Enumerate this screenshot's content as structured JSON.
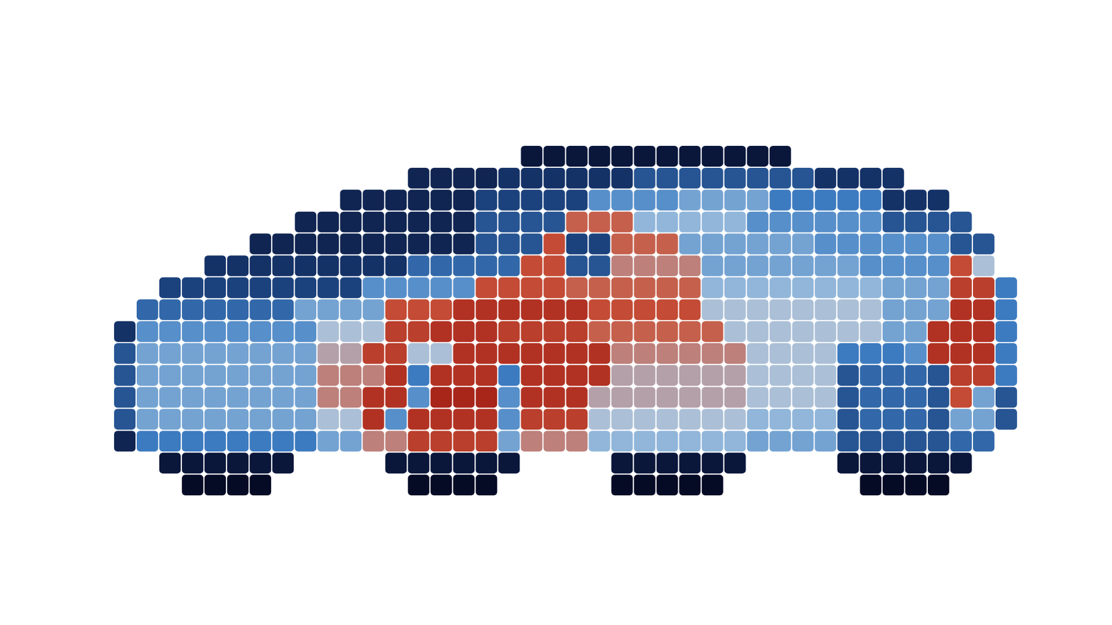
{
  "chart_data": {
    "type": "heatmap",
    "tick_labels": false,
    "xlim": [
      0,
      40
    ],
    "ylim": [
      0,
      16
    ],
    "cells": [
      [
        null,
        null,
        null,
        null,
        null,
        null,
        null,
        null,
        null,
        null,
        null,
        null,
        null,
        null,
        null,
        null,
        null,
        null,
        0.1,
        0.1,
        0.1,
        0.1,
        0.1,
        0.1,
        0.1,
        0.1,
        0.1,
        0.1,
        0.1,
        0.1,
        null,
        null,
        null,
        null,
        null,
        null,
        null,
        null,
        null,
        null
      ],
      [
        null,
        null,
        null,
        null,
        null,
        null,
        null,
        null,
        null,
        null,
        null,
        null,
        null,
        0.15,
        0.15,
        0.15,
        0.15,
        0.2,
        0.2,
        0.2,
        0.2,
        0.2,
        0.2,
        0.3,
        0.3,
        0.3,
        0.3,
        0.3,
        0.3,
        0.3,
        0.3,
        0.2,
        0.2,
        0.2,
        0.2,
        null,
        null,
        null,
        null,
        null
      ],
      [
        null,
        null,
        null,
        null,
        null,
        null,
        null,
        null,
        null,
        null,
        0.15,
        0.15,
        0.15,
        0.15,
        0.15,
        0.15,
        0.25,
        0.25,
        0.25,
        0.25,
        0.25,
        0.45,
        0.45,
        0.45,
        0.45,
        0.5,
        0.5,
        0.5,
        0.5,
        0.4,
        0.4,
        0.4,
        0.4,
        0.4,
        0.2,
        0.2,
        0.2,
        null,
        null,
        null
      ],
      [
        null,
        null,
        null,
        null,
        null,
        null,
        null,
        null,
        0.15,
        0.15,
        0.15,
        0.15,
        0.15,
        0.15,
        0.15,
        0.15,
        0.3,
        0.3,
        0.3,
        0.3,
        0.75,
        0.75,
        0.75,
        0.55,
        0.55,
        0.55,
        0.55,
        0.55,
        0.45,
        0.45,
        0.45,
        0.45,
        0.45,
        0.45,
        0.3,
        0.3,
        0.3,
        0.3,
        null,
        null
      ],
      [
        null,
        null,
        null,
        null,
        null,
        null,
        0.15,
        0.15,
        0.15,
        0.15,
        0.15,
        0.15,
        0.15,
        0.15,
        0.15,
        0.15,
        0.3,
        0.3,
        0.3,
        0.8,
        0.25,
        0.25,
        0.75,
        0.75,
        0.75,
        0.5,
        0.5,
        0.5,
        0.5,
        0.5,
        0.5,
        0.45,
        0.45,
        0.45,
        0.45,
        0.45,
        0.45,
        0.3,
        0.3,
        null
      ],
      [
        null,
        null,
        null,
        null,
        0.2,
        0.2,
        0.2,
        0.2,
        0.2,
        0.2,
        0.2,
        0.2,
        0.2,
        0.35,
        0.35,
        0.35,
        0.35,
        0.35,
        0.8,
        0.8,
        0.3,
        0.3,
        0.7,
        0.7,
        0.7,
        0.7,
        0.5,
        0.5,
        0.5,
        0.5,
        0.5,
        0.5,
        0.5,
        0.45,
        0.45,
        0.45,
        0.45,
        0.8,
        0.6,
        null
      ],
      [
        null,
        null,
        0.25,
        0.25,
        0.25,
        0.25,
        0.25,
        0.25,
        0.25,
        0.25,
        0.25,
        0.45,
        0.45,
        0.45,
        0.45,
        0.45,
        0.8,
        0.8,
        0.8,
        0.8,
        0.75,
        0.75,
        0.75,
        0.75,
        0.75,
        0.75,
        0.55,
        0.55,
        0.55,
        0.55,
        0.55,
        0.55,
        0.55,
        0.55,
        0.5,
        0.5,
        0.5,
        0.85,
        0.85,
        0.4
      ],
      [
        null,
        0.35,
        0.35,
        0.35,
        0.35,
        0.35,
        0.35,
        0.35,
        0.5,
        0.5,
        0.5,
        0.5,
        0.8,
        0.8,
        0.8,
        0.9,
        0.9,
        0.9,
        0.9,
        0.9,
        0.9,
        0.8,
        0.8,
        0.8,
        0.8,
        0.8,
        0.6,
        0.6,
        0.6,
        0.6,
        0.6,
        0.6,
        0.6,
        0.6,
        0.5,
        0.5,
        0.5,
        0.9,
        0.9,
        0.4
      ],
      [
        0.2,
        0.45,
        0.45,
        0.45,
        0.45,
        0.45,
        0.45,
        0.45,
        0.45,
        0.6,
        0.6,
        0.6,
        0.85,
        0.85,
        0.9,
        0.9,
        0.9,
        0.85,
        0.85,
        0.85,
        0.85,
        0.75,
        0.75,
        0.75,
        0.75,
        0.75,
        0.75,
        0.6,
        0.6,
        0.6,
        0.6,
        0.6,
        0.6,
        0.6,
        0.5,
        0.5,
        0.9,
        0.9,
        0.9,
        0.4
      ],
      [
        0.3,
        0.5,
        0.5,
        0.5,
        0.5,
        0.5,
        0.5,
        0.5,
        0.5,
        0.65,
        0.65,
        0.85,
        0.85,
        0.6,
        0.6,
        0.9,
        0.9,
        0.9,
        0.9,
        0.9,
        0.9,
        0.9,
        0.7,
        0.7,
        0.7,
        0.7,
        0.7,
        0.7,
        0.6,
        0.6,
        0.6,
        0.6,
        0.4,
        0.4,
        0.4,
        0.45,
        0.9,
        0.9,
        0.9,
        0.4
      ],
      [
        0.3,
        0.5,
        0.5,
        0.5,
        0.5,
        0.5,
        0.5,
        0.5,
        0.5,
        0.7,
        0.7,
        0.7,
        0.9,
        0.4,
        0.9,
        0.9,
        0.9,
        0.4,
        0.9,
        0.9,
        0.9,
        0.9,
        0.65,
        0.65,
        0.65,
        0.65,
        0.65,
        0.65,
        0.6,
        0.6,
        0.6,
        0.6,
        0.3,
        0.35,
        0.35,
        0.35,
        0.3,
        0.85,
        0.85,
        0.4
      ],
      [
        0.3,
        0.5,
        0.5,
        0.5,
        0.5,
        0.5,
        0.5,
        0.5,
        0.5,
        0.7,
        0.7,
        0.9,
        0.9,
        0.45,
        0.95,
        0.95,
        0.95,
        0.45,
        0.9,
        0.9,
        0.9,
        0.65,
        0.65,
        0.65,
        0.65,
        0.65,
        0.65,
        0.65,
        0.6,
        0.6,
        0.6,
        0.6,
        0.3,
        0.35,
        0.35,
        0.35,
        0.3,
        0.8,
        0.5,
        0.3
      ],
      [
        0.3,
        0.5,
        0.5,
        0.5,
        0.5,
        0.5,
        0.5,
        0.5,
        0.5,
        0.6,
        0.6,
        0.9,
        0.45,
        0.9,
        0.9,
        0.9,
        0.9,
        0.45,
        0.85,
        0.85,
        0.85,
        0.6,
        0.6,
        0.6,
        0.6,
        0.6,
        0.6,
        0.6,
        0.55,
        0.55,
        0.55,
        0.55,
        0.3,
        0.35,
        0.35,
        0.35,
        0.3,
        0.5,
        0.5,
        0.3
      ],
      [
        0.15,
        0.4,
        0.4,
        0.4,
        0.4,
        0.4,
        0.4,
        0.4,
        0.4,
        0.5,
        0.5,
        0.7,
        0.7,
        0.85,
        0.85,
        0.85,
        0.85,
        0.5,
        0.7,
        0.7,
        0.7,
        0.55,
        0.55,
        0.55,
        0.55,
        0.55,
        0.55,
        0.55,
        0.5,
        0.5,
        0.5,
        0.5,
        0.3,
        0.3,
        0.3,
        0.3,
        0.3,
        0.35,
        0.35,
        null
      ],
      [
        null,
        null,
        0.1,
        0.1,
        0.1,
        0.1,
        0.1,
        0.1,
        null,
        null,
        null,
        null,
        0.1,
        0.1,
        0.1,
        0.1,
        0.1,
        0.1,
        null,
        null,
        null,
        null,
        0.1,
        0.1,
        0.1,
        0.1,
        0.1,
        0.1,
        null,
        null,
        null,
        null,
        0.1,
        0.1,
        0.1,
        0.1,
        0.1,
        0.1,
        null,
        null
      ],
      [
        null,
        null,
        null,
        0.05,
        0.05,
        0.05,
        0.05,
        null,
        null,
        null,
        null,
        null,
        null,
        0.05,
        0.05,
        0.05,
        0.05,
        null,
        null,
        null,
        null,
        null,
        0.05,
        0.05,
        0.05,
        0.05,
        0.05,
        null,
        null,
        null,
        null,
        null,
        null,
        0.05,
        0.05,
        0.05,
        0.05,
        null,
        null,
        null
      ]
    ]
  }
}
